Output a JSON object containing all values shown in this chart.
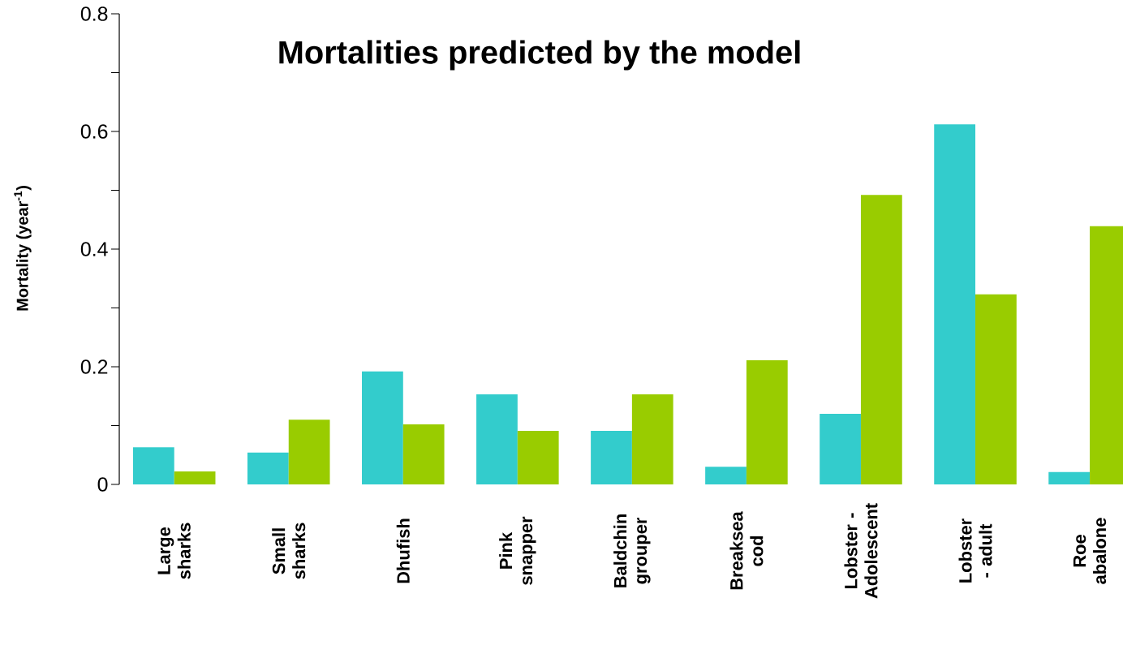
{
  "chart_data": {
    "type": "bar",
    "title": "Mortalities predicted by the model",
    "ylabel": "Mortality (year$^{-1}$)",
    "categories": [
      "Large sharks",
      "Small sharks",
      "Dhufish",
      "Pink snapper",
      "Baldchin grouper",
      "Breaksea cod",
      "Lobster - Adolescent",
      "Lobster - adult",
      "Roe abalone"
    ],
    "series": [
      {
        "color": "#33cccc",
        "values": [
          0.063,
          0.054,
          0.192,
          0.153,
          0.091,
          0.03,
          0.12,
          0.612,
          0.021
        ]
      },
      {
        "color": "#99cc00",
        "values": [
          0.022,
          0.11,
          0.102,
          0.091,
          0.153,
          0.211,
          0.492,
          0.323,
          0.439
        ]
      }
    ],
    "ylim": [
      0,
      0.8
    ],
    "yticks": [
      0,
      0.2,
      0.4,
      0.6,
      0.8
    ]
  }
}
